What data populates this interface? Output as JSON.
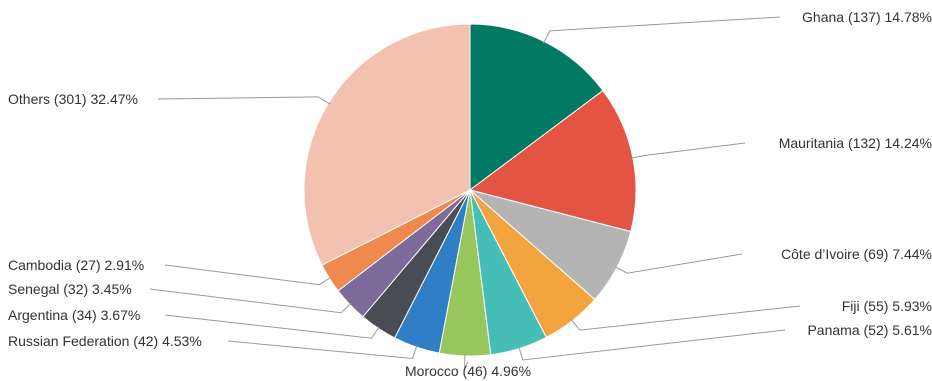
{
  "chart_data": {
    "type": "pie",
    "title": "",
    "start_angle_deg": 0,
    "direction": "clockwise",
    "slices": [
      {
        "name": "Ghana",
        "count": 137,
        "percent": 14.78,
        "label": "Ghana (137) 14.78%",
        "color": "#007a63"
      },
      {
        "name": "Mauritania",
        "count": 132,
        "percent": 14.24,
        "label": "Mauritania (132) 14.24%",
        "color": "#e35442"
      },
      {
        "name": "Côte d’Ivoire",
        "count": 69,
        "percent": 7.44,
        "label": "Côte d’Ivoire (69) 7.44%",
        "color": "#b4b4b4"
      },
      {
        "name": "Fiji",
        "count": 55,
        "percent": 5.93,
        "label": "Fiji (55) 5.93%",
        "color": "#f4a43e"
      },
      {
        "name": "Panama",
        "count": 52,
        "percent": 5.61,
        "label": "Panama (52) 5.61%",
        "color": "#45beb7"
      },
      {
        "name": "Morocco",
        "count": 46,
        "percent": 4.96,
        "label": "Morocco (46) 4.96%",
        "color": "#97c65c"
      },
      {
        "name": "Russian Federation",
        "count": 42,
        "percent": 4.53,
        "label": "Russian Federation (42) 4.53%",
        "color": "#2f7fc6"
      },
      {
        "name": "Argentina",
        "count": 34,
        "percent": 3.67,
        "label": "Argentina (34) 3.67%",
        "color": "#4a4c55"
      },
      {
        "name": "Senegal",
        "count": 32,
        "percent": 3.45,
        "label": "Senegal (32) 3.45%",
        "color": "#7c6b9b"
      },
      {
        "name": "Cambodia",
        "count": 27,
        "percent": 2.91,
        "label": "Cambodia (27) 2.91%",
        "color": "#f0894e"
      },
      {
        "name": "Others",
        "count": 301,
        "percent": 32.47,
        "label": "Others (301) 32.47%",
        "color": "#f2c1b0"
      }
    ]
  }
}
